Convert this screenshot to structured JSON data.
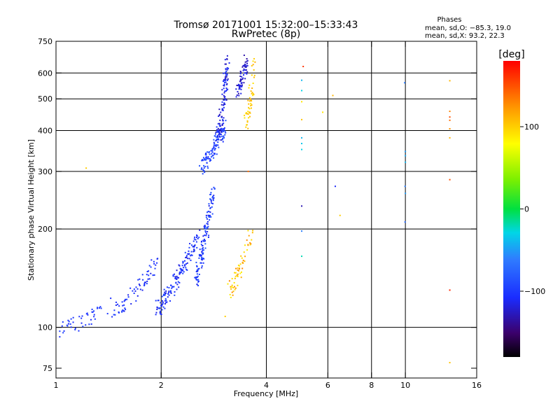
{
  "chart_data": {
    "type": "scatter",
    "title": "Tromsø 20171001 15:32:00–15:33:43",
    "subtitle": "RwPretec (8p)",
    "xlabel": "Frequency [MHz]",
    "ylabel": "Stationary phase Virtual Height [km]",
    "x_scale": "log",
    "y_scale": "log",
    "xlim": [
      1,
      16
    ],
    "ylim": [
      70,
      750
    ],
    "x_ticks": [
      "1",
      "2",
      "4",
      "6",
      "8",
      "10",
      "16"
    ],
    "x_tick_values": [
      1,
      2,
      4,
      6,
      8,
      10,
      16
    ],
    "y_ticks": [
      "750",
      "600",
      "500",
      "400",
      "300",
      "200",
      "100",
      "75"
    ],
    "y_tick_values": [
      750,
      600,
      500,
      400,
      300,
      200,
      100,
      75
    ],
    "x_grid_values": [
      2,
      4,
      6,
      8,
      10
    ],
    "y_grid_values": [
      600,
      500,
      400,
      300,
      200,
      100
    ],
    "info": {
      "heading": "Phases",
      "line_o": "mean, sd,O: −85.3, 19.0",
      "line_x": "mean, sd,X:  93.2, 22.3"
    },
    "colorbar": {
      "label": "[deg]",
      "ticks": [
        "100",
        "0",
        "−100"
      ],
      "tick_values": [
        100,
        0,
        -100
      ],
      "range": [
        -180,
        180
      ]
    },
    "clusters": [
      {
        "name": "low-e-region",
        "x": [
          1.0,
          1.45
        ],
        "y": [
          97,
          120
        ],
        "phase": [
          -110,
          -95
        ],
        "n": 45
      },
      {
        "name": "e-region-rise",
        "x": [
          1.45,
          1.95
        ],
        "y": [
          110,
          160
        ],
        "phase": [
          -115,
          -95
        ],
        "n": 70
      },
      {
        "name": "f1-lower",
        "x": [
          1.95,
          2.55
        ],
        "y": [
          115,
          190
        ],
        "phase": [
          -120,
          -90
        ],
        "n": 150
      },
      {
        "name": "f1-steep",
        "x": [
          2.5,
          2.82
        ],
        "y": [
          140,
          260
        ],
        "phase": [
          -115,
          -80
        ],
        "n": 130
      },
      {
        "name": "f2-lower",
        "x": [
          2.6,
          3.05
        ],
        "y": [
          310,
          420
        ],
        "phase": [
          -110,
          -80
        ],
        "n": 110
      },
      {
        "name": "f2-upper",
        "x": [
          2.9,
          3.1
        ],
        "y": [
          380,
          650
        ],
        "phase": [
          -130,
          -100
        ],
        "n": 120
      },
      {
        "name": "f2-cusp",
        "x": [
          3.3,
          3.5
        ],
        "y": [
          520,
          650
        ],
        "phase": [
          -135,
          -110
        ],
        "n": 70
      },
      {
        "name": "f2-x-mode",
        "x": [
          3.5,
          3.7
        ],
        "y": [
          420,
          640
        ],
        "phase": [
          90,
          115
        ],
        "n": 50
      },
      {
        "name": "f1-x-mode",
        "x": [
          3.12,
          3.65
        ],
        "y": [
          130,
          200
        ],
        "phase": [
          80,
          130
        ],
        "n": 60
      }
    ],
    "isolated_points": [
      {
        "x": 1.22,
        "y": 307,
        "phase": 100
      },
      {
        "x": 5.1,
        "y": 628,
        "phase": 160
      },
      {
        "x": 5.05,
        "y": 570,
        "phase": -40
      },
      {
        "x": 5.05,
        "y": 530,
        "phase": -30
      },
      {
        "x": 5.05,
        "y": 490,
        "phase": 90
      },
      {
        "x": 5.05,
        "y": 432,
        "phase": 105
      },
      {
        "x": 5.05,
        "y": 380,
        "phase": -40
      },
      {
        "x": 5.05,
        "y": 365,
        "phase": -35
      },
      {
        "x": 5.05,
        "y": 350,
        "phase": -30
      },
      {
        "x": 5.05,
        "y": 235,
        "phase": -130
      },
      {
        "x": 5.05,
        "y": 197,
        "phase": -60
      },
      {
        "x": 5.05,
        "y": 165,
        "phase": -20
      },
      {
        "x": 5.8,
        "y": 455,
        "phase": 90
      },
      {
        "x": 6.2,
        "y": 512,
        "phase": 110
      },
      {
        "x": 6.3,
        "y": 270,
        "phase": -110
      },
      {
        "x": 6.5,
        "y": 220,
        "phase": 100
      },
      {
        "x": 9.95,
        "y": 560,
        "phase": -60
      },
      {
        "x": 10.0,
        "y": 345,
        "phase": -50
      },
      {
        "x": 10.0,
        "y": 335,
        "phase": -45
      },
      {
        "x": 10.0,
        "y": 320,
        "phase": -40
      },
      {
        "x": 9.98,
        "y": 270,
        "phase": -60
      },
      {
        "x": 10.0,
        "y": 257,
        "phase": -50
      },
      {
        "x": 9.98,
        "y": 210,
        "phase": -70
      },
      {
        "x": 13.4,
        "y": 568,
        "phase": 110
      },
      {
        "x": 13.4,
        "y": 458,
        "phase": 130
      },
      {
        "x": 13.4,
        "y": 440,
        "phase": 150
      },
      {
        "x": 13.4,
        "y": 430,
        "phase": 140
      },
      {
        "x": 13.4,
        "y": 405,
        "phase": 125
      },
      {
        "x": 13.4,
        "y": 380,
        "phase": 110
      },
      {
        "x": 13.4,
        "y": 283,
        "phase": 150
      },
      {
        "x": 13.4,
        "y": 130,
        "phase": 165
      },
      {
        "x": 13.4,
        "y": 78,
        "phase": 105
      },
      {
        "x": 3.05,
        "y": 108,
        "phase": 100
      },
      {
        "x": 3.55,
        "y": 300,
        "phase": 140
      }
    ]
  }
}
